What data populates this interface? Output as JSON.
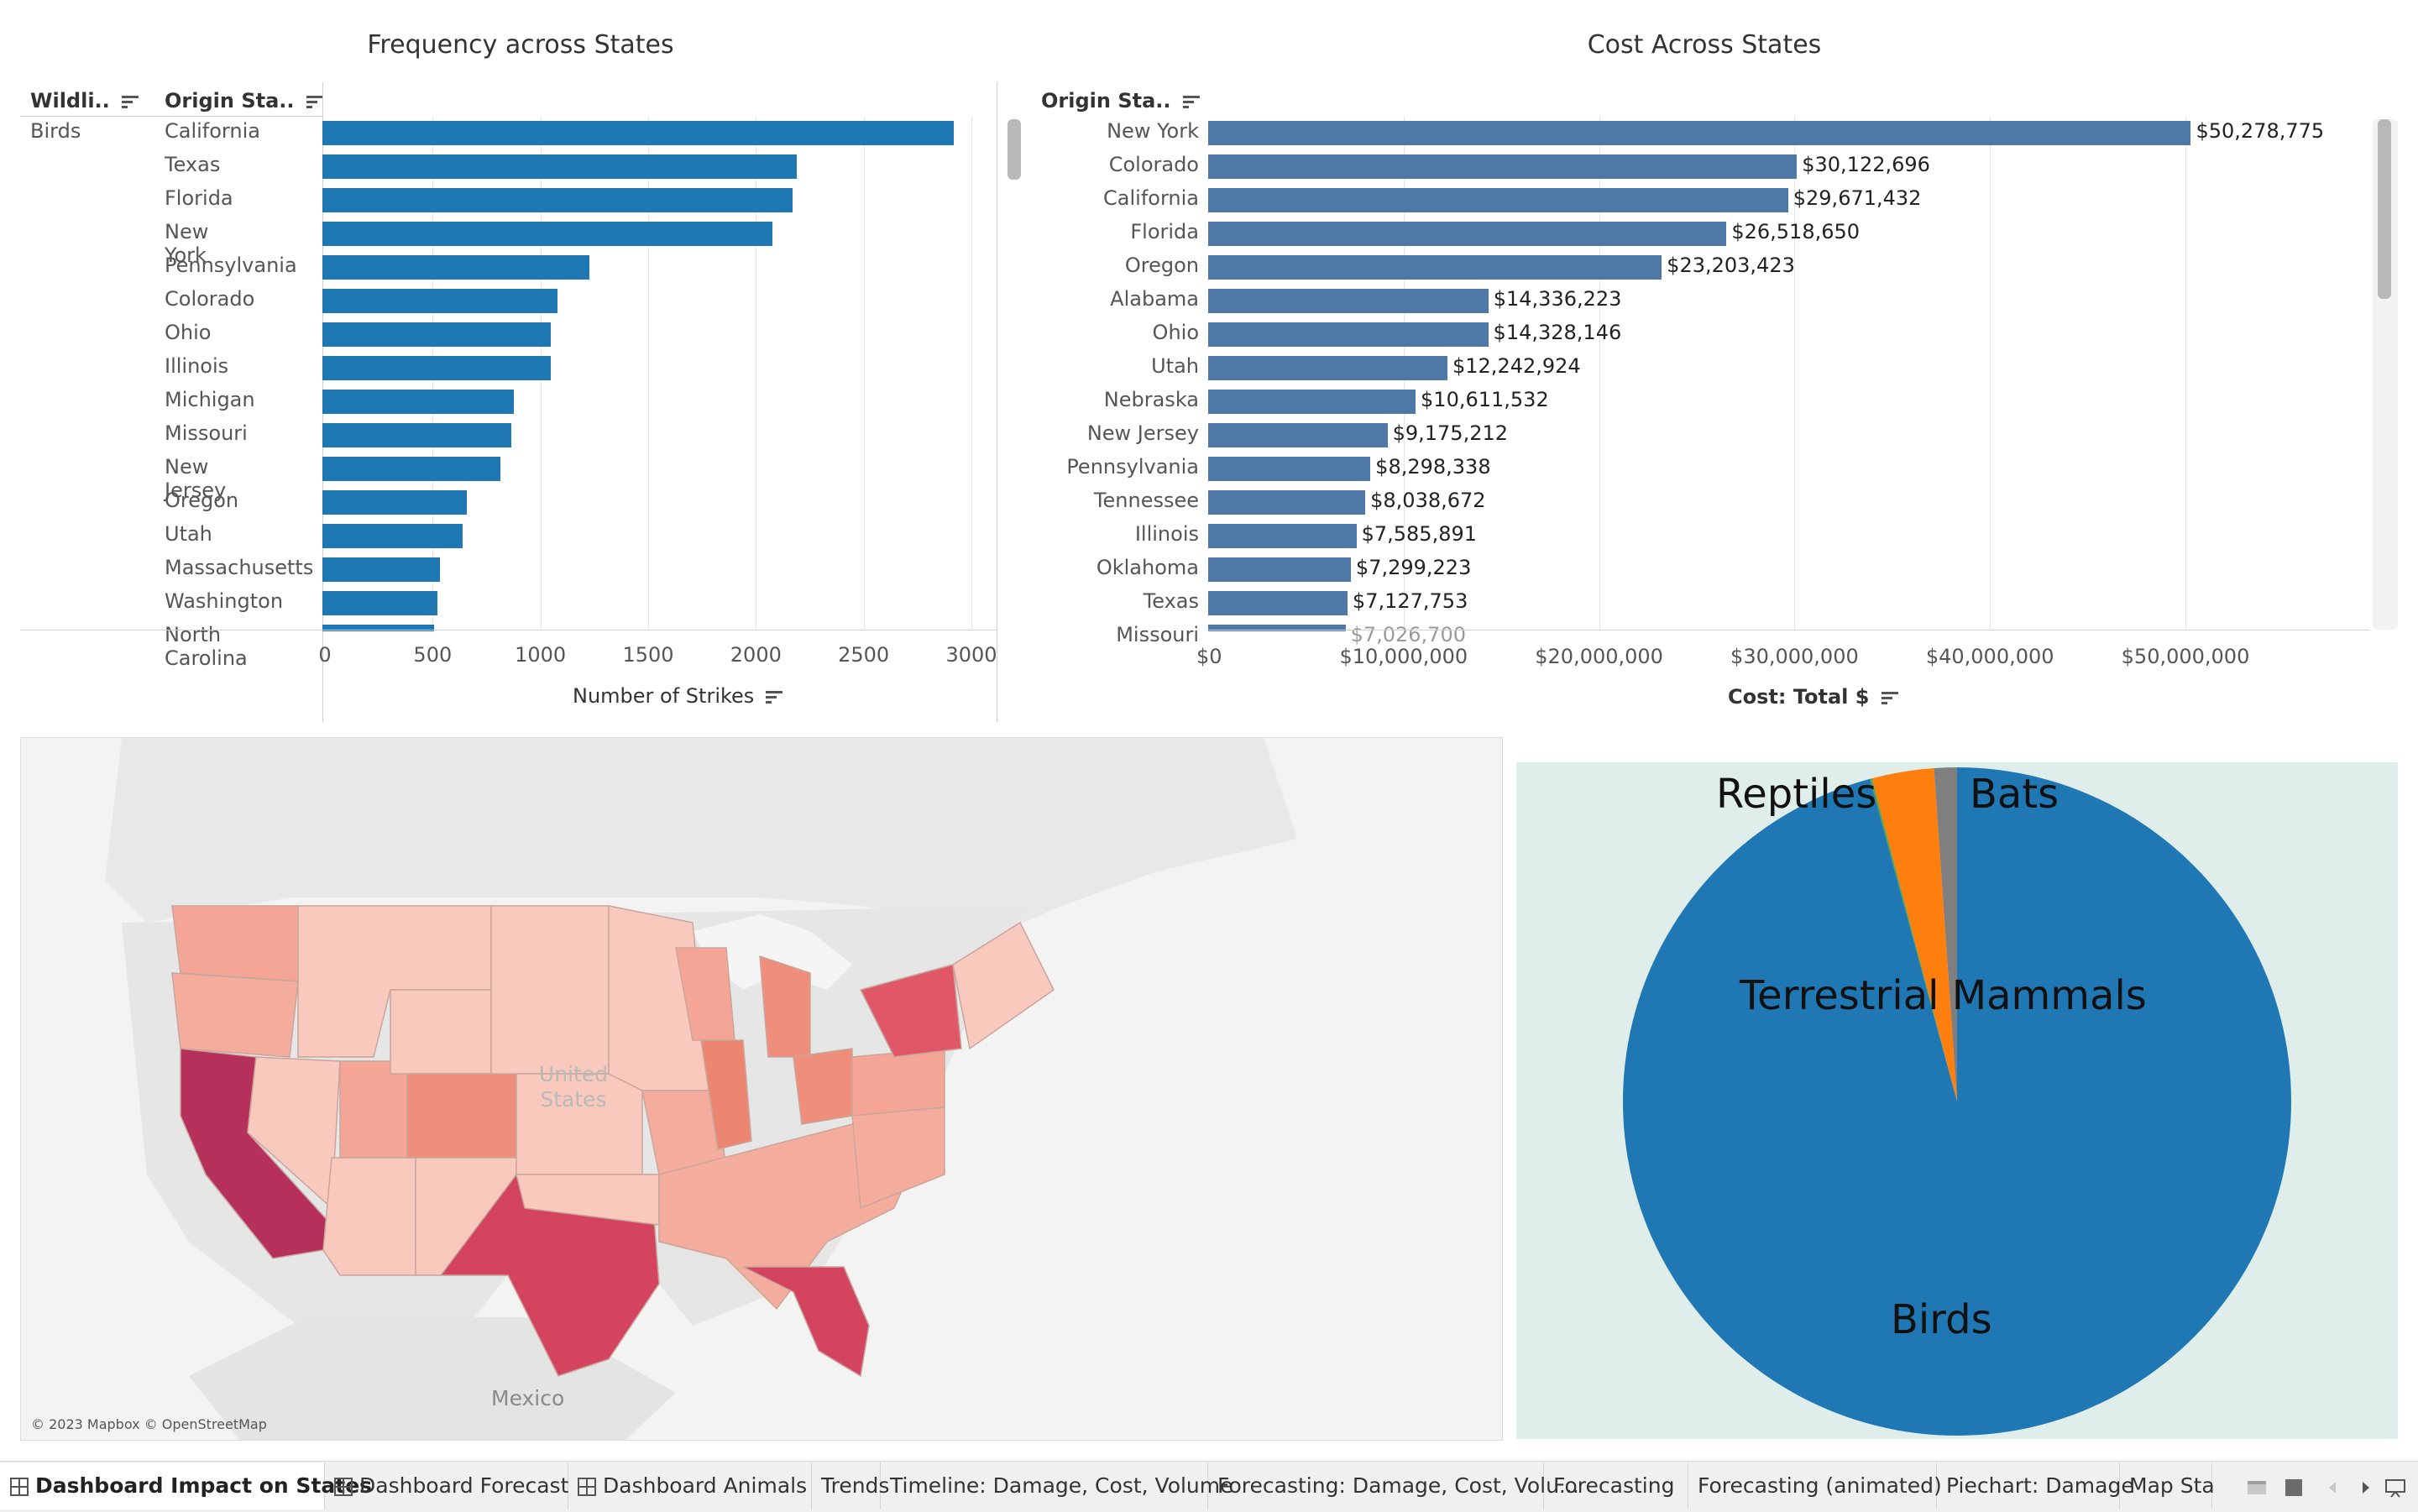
{
  "freq": {
    "title": "Frequency across States",
    "col_wildlife": "Wildli..",
    "col_state": "Origin Sta..",
    "group": "Birds",
    "axis_title": "Number of Strikes",
    "ticks": [
      "0",
      "500",
      "1000",
      "1500",
      "2000",
      "2500",
      "3000"
    ],
    "rows": [
      {
        "state": "California",
        "value": 2930
      },
      {
        "state": "Texas",
        "value": 2200
      },
      {
        "state": "Florida",
        "value": 2180
      },
      {
        "state": "New York",
        "value": 2090
      },
      {
        "state": "Pennsylvania",
        "value": 1240
      },
      {
        "state": "Colorado",
        "value": 1090
      },
      {
        "state": "Ohio",
        "value": 1060
      },
      {
        "state": "Illinois",
        "value": 1060
      },
      {
        "state": "Michigan",
        "value": 890
      },
      {
        "state": "Missouri",
        "value": 875
      },
      {
        "state": "New Jersey",
        "value": 825
      },
      {
        "state": "Oregon",
        "value": 670
      },
      {
        "state": "Utah",
        "value": 650
      },
      {
        "state": "Massachusetts",
        "value": 545
      },
      {
        "state": "Washington",
        "value": 535
      },
      {
        "state": "North Carolina",
        "value": 520
      }
    ]
  },
  "cost": {
    "title": "Cost Across States",
    "col_state": "Origin Sta..",
    "axis_title": "Cost: Total $",
    "ticks": [
      "$0",
      "$10,000,000",
      "$20,000,000",
      "$30,000,000",
      "$40,000,000",
      "$50,000,000"
    ],
    "rows": [
      {
        "state": "New York",
        "value": 50278775,
        "label": "$50,278,775"
      },
      {
        "state": "Colorado",
        "value": 30122696,
        "label": "$30,122,696"
      },
      {
        "state": "California",
        "value": 29671432,
        "label": "$29,671,432"
      },
      {
        "state": "Florida",
        "value": 26518650,
        "label": "$26,518,650"
      },
      {
        "state": "Oregon",
        "value": 23203423,
        "label": "$23,203,423"
      },
      {
        "state": "Alabama",
        "value": 14336223,
        "label": "$14,336,223"
      },
      {
        "state": "Ohio",
        "value": 14328146,
        "label": "$14,328,146"
      },
      {
        "state": "Utah",
        "value": 12242924,
        "label": "$12,242,924"
      },
      {
        "state": "Nebraska",
        "value": 10611532,
        "label": "$10,611,532"
      },
      {
        "state": "New Jersey",
        "value": 9175212,
        "label": "$9,175,212"
      },
      {
        "state": "Pennsylvania",
        "value": 8298338,
        "label": "$8,298,338"
      },
      {
        "state": "Tennessee",
        "value": 8038672,
        "label": "$8,038,672"
      },
      {
        "state": "Illinois",
        "value": 7585891,
        "label": "$7,585,891"
      },
      {
        "state": "Oklahoma",
        "value": 7299223,
        "label": "$7,299,223"
      },
      {
        "state": "Texas",
        "value": 7127753,
        "label": "$7,127,753"
      },
      {
        "state": "Missouri",
        "value": 7026700,
        "label": "$7,026,700"
      }
    ]
  },
  "map": {
    "label_country": "United States",
    "label_mexico": "Mexico",
    "attribution": "© 2023 Mapbox © OpenStreetMap",
    "color_high": "#b5305a",
    "color_low": "#f9c9bd"
  },
  "pie": {
    "background": "#e0eeeb",
    "slices": [
      {
        "name": "Birds",
        "share": 0.958,
        "color": "#1f77b4"
      },
      {
        "name": "Terrestrial Mammals",
        "share": 0.001,
        "color": "#59a14f"
      },
      {
        "name": "Reptiles",
        "share": 0.03,
        "color": "#ff7f0e"
      },
      {
        "name": "Bats",
        "share": 0.011,
        "color": "#7f7f7f"
      }
    ]
  },
  "tabs": [
    {
      "label": "Dashboard Impact on States",
      "active": true,
      "icon": "dashboard-grid-icon"
    },
    {
      "label": "Dashboard Forecast",
      "active": false,
      "icon": "dashboard-grid-icon"
    },
    {
      "label": "Dashboard Animals",
      "active": false,
      "icon": "dashboard-grid-icon"
    },
    {
      "label": "Trends",
      "active": false
    },
    {
      "label": "Timeline: Damage, Cost, Volume",
      "active": false
    },
    {
      "label": "Forecasting: Damage, Cost, Volu...",
      "active": false
    },
    {
      "label": "Forecasting",
      "active": false
    },
    {
      "label": "Forecasting (animated)",
      "active": false
    },
    {
      "label": "Piechart: Damage",
      "active": false
    },
    {
      "label": "Map Sta",
      "active": false
    }
  ],
  "chart_data": [
    {
      "type": "bar",
      "title": "Frequency across States",
      "xlabel": "Number of Strikes",
      "ylabel": "Origin Sta..",
      "xlim": [
        0,
        3000
      ],
      "categories": [
        "California",
        "Texas",
        "Florida",
        "New York",
        "Pennsylvania",
        "Colorado",
        "Ohio",
        "Illinois",
        "Michigan",
        "Missouri",
        "New Jersey",
        "Oregon",
        "Utah",
        "Massachusetts",
        "Washington",
        "North Carolina"
      ],
      "values": [
        2930,
        2200,
        2180,
        2090,
        1240,
        1090,
        1060,
        1060,
        890,
        875,
        825,
        670,
        650,
        545,
        535,
        520
      ]
    },
    {
      "type": "bar",
      "title": "Cost Across States",
      "xlabel": "Cost: Total $",
      "ylabel": "Origin Sta..",
      "xlim": [
        0,
        60000000
      ],
      "categories": [
        "New York",
        "Colorado",
        "California",
        "Florida",
        "Oregon",
        "Alabama",
        "Ohio",
        "Utah",
        "Nebraska",
        "New Jersey",
        "Pennsylvania",
        "Tennessee",
        "Illinois",
        "Oklahoma",
        "Texas",
        "Missouri"
      ],
      "values": [
        50278775,
        30122696,
        29671432,
        26518650,
        23203423,
        14336223,
        14328146,
        12242924,
        10611532,
        9175212,
        8298338,
        8038672,
        7585891,
        7299223,
        7127753,
        7026700
      ]
    },
    {
      "type": "pie",
      "categories": [
        "Birds",
        "Terrestrial Mammals",
        "Reptiles",
        "Bats"
      ],
      "values": [
        0.958,
        0.001,
        0.03,
        0.011
      ]
    }
  ]
}
